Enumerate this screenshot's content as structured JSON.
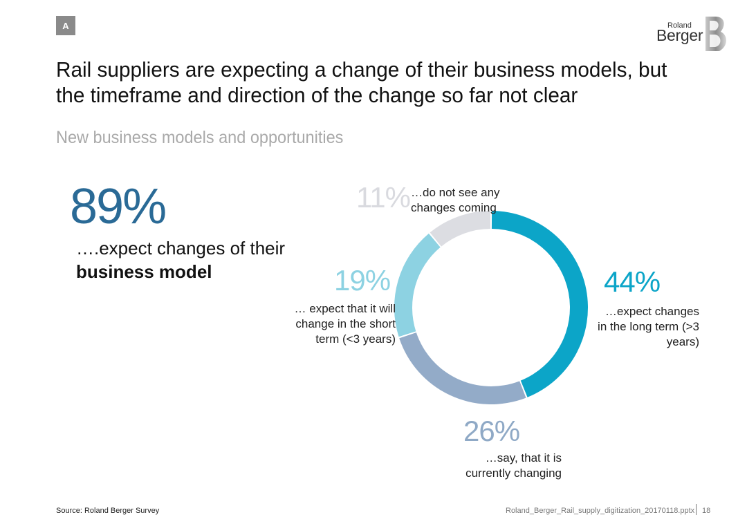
{
  "badge": "A",
  "logo": {
    "small": "Roland",
    "big": "Berger"
  },
  "title_line1": "Rail suppliers are expecting a change of their business models, but",
  "title_line2": "the timeframe and direction of the change so far not clear",
  "subtitle": "New business models and opportunities",
  "headline": {
    "percent": "89%",
    "text_line1": "….expect changes of their",
    "text_line2": "business model"
  },
  "chart_data": {
    "type": "pie",
    "variant": "donut",
    "slices": [
      {
        "key": "long_term",
        "value": 44,
        "label": "44%",
        "color": "#0ca5c8",
        "desc_lines": [
          "…expect changes",
          "in the long term (>3",
          "years)"
        ]
      },
      {
        "key": "currently",
        "value": 26,
        "label": "26%",
        "color": "#93abc8",
        "desc_lines": [
          "…say, that it is",
          "currently changing"
        ]
      },
      {
        "key": "short_term",
        "value": 19,
        "label": "19%",
        "color": "#8dd2e2",
        "desc_lines": [
          "… expect that it will",
          "change in the short",
          "term (<3 years)"
        ]
      },
      {
        "key": "no_change",
        "value": 11,
        "label": "11%",
        "color": "#dcdde2",
        "desc_lines": [
          "…do not see any",
          "changes coming"
        ]
      }
    ]
  },
  "footer": {
    "source": "Source: Roland Berger Survey",
    "file": "Roland_Berger_Rail_supply_digitization_20170118.pptx",
    "page": "18"
  }
}
